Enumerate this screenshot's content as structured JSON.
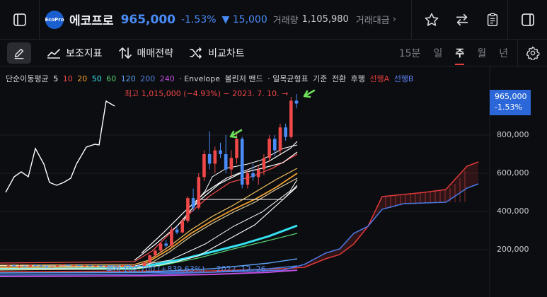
{
  "header": {
    "logo_text": "EcoPro",
    "stock_name": "에코프로",
    "price": "965,000",
    "change_pct": "-1.53%",
    "change_amount": "▼ 15,000",
    "volume_label": "거래량",
    "volume_value": "1,105,980",
    "amount_label": "거래대금"
  },
  "toolbar": {
    "indicators_label": "보조지표",
    "strategy_label": "매매전략",
    "compare_label": "비교차트",
    "periods": [
      "15분",
      "일",
      "주",
      "월",
      "년"
    ],
    "active_period": "주"
  },
  "legend": {
    "sma_label": "단순이동평균",
    "sma_periods": [
      {
        "value": "5",
        "color": "#ffffff"
      },
      {
        "value": "10",
        "color": "#f04848"
      },
      {
        "value": "20",
        "color": "#f0a030"
      },
      {
        "value": "50",
        "color": "#35e0f0"
      },
      {
        "value": "60",
        "color": "#55d070"
      },
      {
        "value": "120",
        "color": "#5aa0f0"
      },
      {
        "value": "200",
        "color": "#5080e0"
      },
      {
        "value": "240",
        "color": "#c050e0"
      }
    ],
    "envelope": "· Envelope",
    "bollinger": "볼린저 밴드",
    "ichimoku_label": "· 일목균형표",
    "ichimoku_items": [
      "기준",
      "전환",
      "후행"
    ],
    "span_a": "선행A",
    "span_b": "선행B"
  },
  "annotations": {
    "high": "최고 1,015,000 (−4.93%) − 2023. 7. 10. →",
    "low": "최저 102,700 (+839.63%) − 2022. 12. 26."
  },
  "price_axis": {
    "current_price": "965,000",
    "current_pct": "-1.53%",
    "labels": [
      "800,000",
      "600,000",
      "400,000",
      "200,000"
    ]
  },
  "colors": {
    "up": "#f04848",
    "down": "#4a8cf7",
    "accent": "#e33d3d",
    "background": "#0c0d10"
  },
  "chart_data": {
    "type": "candlestick",
    "interval": "weekly",
    "y_ticks": [
      200000,
      400000,
      600000,
      800000
    ],
    "ylim": [
      0,
      1050000
    ],
    "high": {
      "value": 1015000,
      "date": "2023. 7. 10."
    },
    "low": {
      "value": 102700,
      "date": "2022. 12. 26."
    },
    "candles": [
      [
        112000,
        120000,
        105000,
        118000
      ],
      [
        118000,
        126000,
        110000,
        112000
      ],
      [
        112000,
        120000,
        103000,
        115000
      ],
      [
        115000,
        118000,
        108000,
        110000
      ],
      [
        110000,
        122000,
        106000,
        119000
      ],
      [
        119000,
        124000,
        113000,
        116000
      ],
      [
        116000,
        121000,
        109000,
        113000
      ],
      [
        113000,
        118000,
        104000,
        108000
      ],
      [
        108000,
        114000,
        102700,
        111000
      ],
      [
        111000,
        120000,
        108000,
        117000
      ],
      [
        117000,
        125000,
        112000,
        121000
      ],
      [
        121000,
        124000,
        114000,
        116000
      ],
      [
        116000,
        122000,
        111000,
        118000
      ],
      [
        118000,
        124000,
        113000,
        115000
      ],
      [
        115000,
        120000,
        109000,
        117000
      ],
      [
        117000,
        121000,
        111000,
        113000
      ],
      [
        113000,
        118000,
        108000,
        116000
      ],
      [
        116000,
        120000,
        110000,
        112000
      ],
      [
        112000,
        117000,
        106000,
        114000
      ],
      [
        114000,
        119000,
        109000,
        111000
      ],
      [
        111000,
        116000,
        105000,
        113000
      ],
      [
        113000,
        120000,
        109000,
        118000
      ],
      [
        118000,
        122000,
        112000,
        114000
      ],
      [
        114000,
        119000,
        108000,
        117000
      ],
      [
        117000,
        121000,
        111000,
        115000
      ],
      [
        115000,
        135000,
        112000,
        132000
      ],
      [
        132000,
        175000,
        128000,
        170000
      ],
      [
        170000,
        200000,
        160000,
        195000
      ],
      [
        195000,
        240000,
        180000,
        232000
      ],
      [
        232000,
        250000,
        210000,
        220000
      ],
      [
        220000,
        320000,
        215000,
        305000
      ],
      [
        305000,
        330000,
        280000,
        290000
      ],
      [
        290000,
        360000,
        285000,
        350000
      ],
      [
        350000,
        480000,
        340000,
        470000
      ],
      [
        470000,
        520000,
        400000,
        420000
      ],
      [
        420000,
        600000,
        410000,
        580000
      ],
      [
        580000,
        720000,
        560000,
        700000
      ],
      [
        700000,
        820000,
        620000,
        650000
      ],
      [
        650000,
        740000,
        600000,
        720000
      ],
      [
        720000,
        760000,
        680000,
        700000
      ],
      [
        700000,
        800000,
        600000,
        620000
      ],
      [
        620000,
        720000,
        580000,
        680000
      ],
      [
        680000,
        820000,
        650000,
        780000
      ],
      [
        780000,
        790000,
        520000,
        540000
      ],
      [
        540000,
        620000,
        520000,
        600000
      ],
      [
        600000,
        650000,
        560000,
        580000
      ],
      [
        580000,
        640000,
        540000,
        620000
      ],
      [
        620000,
        700000,
        590000,
        680000
      ],
      [
        680000,
        800000,
        660000,
        780000
      ],
      [
        780000,
        800000,
        690000,
        720000
      ],
      [
        720000,
        860000,
        700000,
        840000
      ],
      [
        840000,
        860000,
        770000,
        790000
      ],
      [
        790000,
        1000000,
        780000,
        980000
      ],
      [
        980000,
        1015000,
        940000,
        965000
      ]
    ]
  }
}
